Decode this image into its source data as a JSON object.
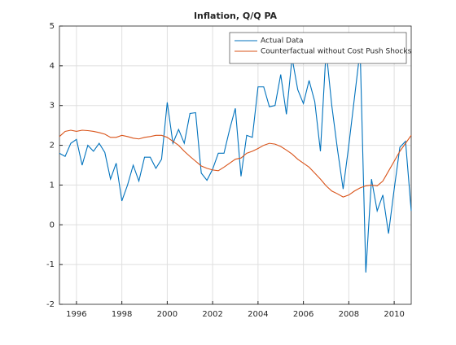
{
  "chart_data": {
    "type": "line",
    "title": "Inflation, Q/Q PA",
    "x": [
      1995.25,
      1995.5,
      1995.75,
      1996,
      1996.25,
      1996.5,
      1996.75,
      1997,
      1997.25,
      1997.5,
      1997.75,
      1998,
      1998.25,
      1998.5,
      1998.75,
      1999,
      1999.25,
      1999.5,
      1999.75,
      2000,
      2000.25,
      2000.5,
      2000.75,
      2001,
      2001.25,
      2001.5,
      2001.75,
      2002,
      2002.25,
      2002.5,
      2002.75,
      2003,
      2003.25,
      2003.5,
      2003.75,
      2004,
      2004.25,
      2004.5,
      2004.75,
      2005,
      2005.25,
      2005.5,
      2005.75,
      2006,
      2006.25,
      2006.5,
      2006.75,
      2007,
      2007.25,
      2007.5,
      2007.75,
      2008,
      2008.25,
      2008.5,
      2008.75,
      2009,
      2009.25,
      2009.5,
      2009.75,
      2010,
      2010.25,
      2010.5,
      2010.75
    ],
    "series": [
      {
        "name": "Actual Data",
        "color": "#0072bd",
        "values": [
          1.8,
          1.72,
          2.05,
          2.15,
          1.5,
          2.0,
          1.85,
          2.05,
          1.82,
          1.15,
          1.55,
          0.6,
          1.0,
          1.5,
          1.1,
          1.7,
          1.7,
          1.42,
          1.65,
          3.08,
          2.05,
          2.4,
          2.05,
          2.8,
          2.82,
          1.3,
          1.12,
          1.4,
          1.8,
          1.8,
          2.4,
          2.93,
          1.22,
          2.25,
          2.2,
          3.47,
          3.47,
          2.97,
          3.0,
          3.78,
          2.78,
          4.2,
          3.4,
          3.05,
          3.63,
          3.1,
          1.85,
          4.4,
          3.0,
          1.9,
          0.9,
          2.0,
          3.2,
          4.4,
          -1.2,
          1.15,
          0.35,
          0.75,
          -0.22,
          0.9,
          1.95,
          2.1,
          0.35
        ]
      },
      {
        "name": "Counterfactual without Cost Push Shocks",
        "color": "#d95319",
        "values": [
          2.22,
          2.35,
          2.38,
          2.35,
          2.38,
          2.37,
          2.35,
          2.32,
          2.28,
          2.2,
          2.2,
          2.25,
          2.22,
          2.18,
          2.16,
          2.2,
          2.22,
          2.25,
          2.25,
          2.2,
          2.1,
          2.0,
          1.85,
          1.72,
          1.6,
          1.48,
          1.42,
          1.38,
          1.36,
          1.45,
          1.55,
          1.65,
          1.68,
          1.8,
          1.85,
          1.92,
          2.0,
          2.05,
          2.03,
          1.97,
          1.88,
          1.78,
          1.65,
          1.55,
          1.45,
          1.3,
          1.15,
          0.98,
          0.85,
          0.78,
          0.7,
          0.75,
          0.85,
          0.93,
          0.98,
          1.0,
          0.98,
          1.1,
          1.35,
          1.6,
          1.85,
          2.05,
          2.25
        ]
      }
    ],
    "xlim": [
      1995.25,
      2010.75
    ],
    "xticks": [
      1996,
      1998,
      2000,
      2002,
      2004,
      2006,
      2008,
      2010
    ],
    "ylim": [
      -2,
      5
    ],
    "yticks": [
      -2,
      -1,
      0,
      1,
      2,
      3,
      4,
      5
    ],
    "grid": true,
    "legend": "top-right"
  }
}
